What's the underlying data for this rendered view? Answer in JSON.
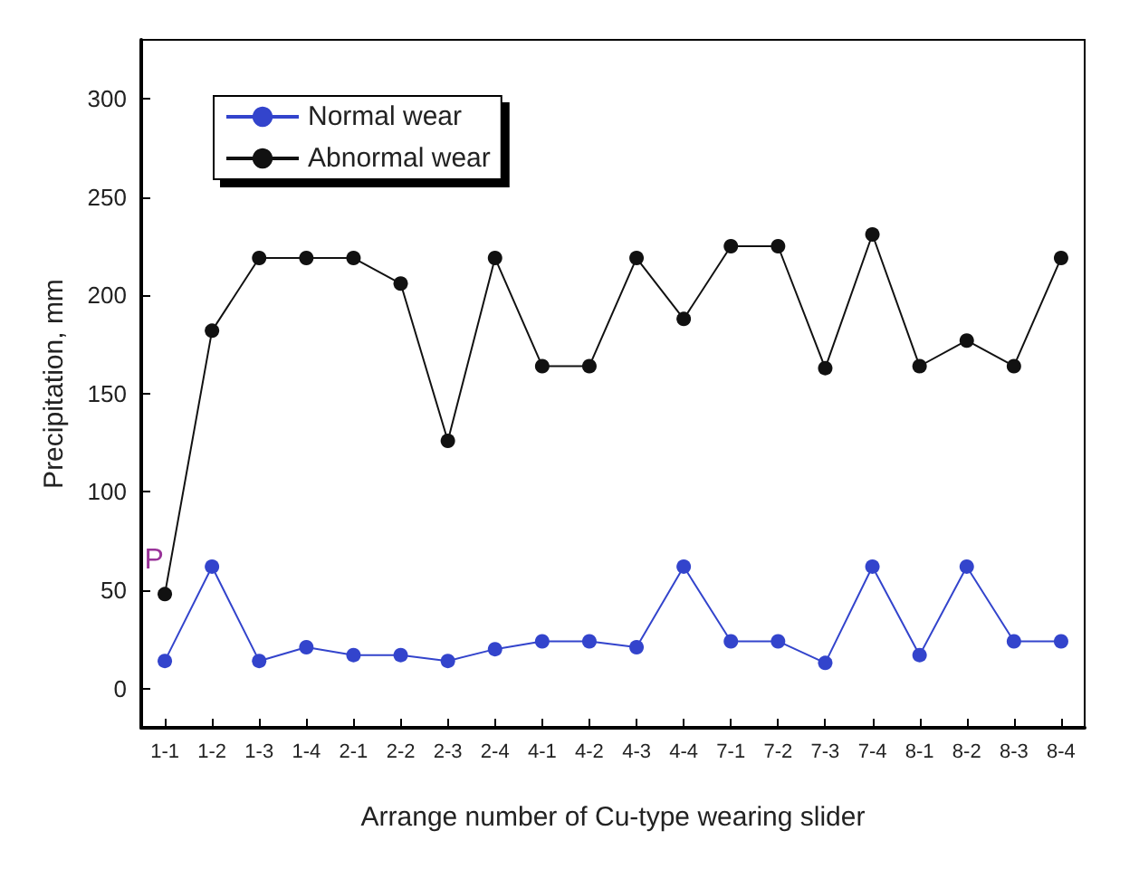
{
  "chart_data": {
    "type": "line",
    "xlabel": "Arrange number of Cu-type wearing slider",
    "ylabel": "Precipitation, mm",
    "categories": [
      "1-1",
      "1-2",
      "1-3",
      "1-4",
      "2-1",
      "2-2",
      "2-3",
      "2-4",
      "4-1",
      "4-2",
      "4-3",
      "4-4",
      "7-1",
      "7-2",
      "7-3",
      "7-4",
      "8-1",
      "8-2",
      "8-3",
      "8-4"
    ],
    "series": [
      {
        "name": "Normal wear",
        "color": "#3344cc",
        "values": [
          14,
          62,
          14,
          21,
          17,
          17,
          14,
          20,
          24,
          24,
          21,
          62,
          24,
          24,
          13,
          62,
          17,
          62,
          24,
          24
        ]
      },
      {
        "name": "Abnormal wear",
        "color": "#111111",
        "values": [
          48,
          182,
          219,
          219,
          219,
          206,
          126,
          219,
          164,
          164,
          219,
          188,
          225,
          225,
          163,
          231,
          164,
          177,
          164,
          219
        ]
      }
    ],
    "ylim": [
      -20,
      330
    ],
    "yticks": [
      0,
      50,
      100,
      150,
      200,
      250,
      300
    ],
    "annotations": [
      {
        "text": "P",
        "x": "1-1",
        "y": 65
      }
    ],
    "legend": "top left",
    "grid": false,
    "marker": "circle",
    "line_style": "solid"
  }
}
